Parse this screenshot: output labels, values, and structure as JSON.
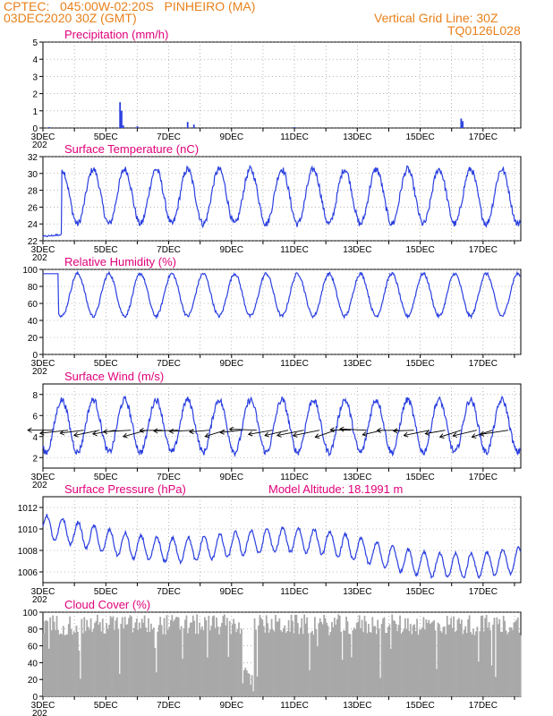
{
  "header": {
    "line1_left": "CPTEC:   045:00W-02:20S   PINHEIRO (MA)",
    "line2_left": "03DEC2020 30Z (GMT)",
    "line1_right": "Vertical Grid Line: 30Z",
    "line2_right": "TQ0126L028"
  },
  "date_labels": [
    "3DEC",
    "5DEC",
    "7DEC",
    "9DEC",
    "11DEC",
    "13DEC",
    "15DEC",
    "17DEC"
  ],
  "year_stub": "202",
  "colors": {
    "line": "#2a3fe0",
    "title": "#e0007a",
    "header": "#e8801a",
    "cloud": "#a8a8a8",
    "grid": "#888888"
  },
  "chart_data": [
    {
      "id": "precip",
      "type": "bar",
      "title": "Precipitation (mm/h)",
      "ylim": [
        0,
        5
      ],
      "yticks": [
        0,
        1,
        2,
        3,
        4,
        5
      ],
      "events": [
        {
          "day": 5.45,
          "value": 1.5
        },
        {
          "day": 5.5,
          "value": 1.0
        },
        {
          "day": 5.55,
          "value": 0.15
        },
        {
          "day": 6.0,
          "value": 0.1
        },
        {
          "day": 7.6,
          "value": 0.35
        },
        {
          "day": 7.8,
          "value": 0.2
        },
        {
          "day": 16.3,
          "value": 0.55
        },
        {
          "day": 16.35,
          "value": 0.4
        },
        {
          "day": 3.2,
          "value": 0.05
        },
        {
          "day": 11.0,
          "value": 0.05
        }
      ]
    },
    {
      "id": "temp",
      "type": "line",
      "title": "Surface Temperature (nC)",
      "ylim": [
        22,
        32
      ],
      "yticks": [
        22,
        24,
        26,
        28,
        30,
        32
      ],
      "series": [
        {
          "name": "",
          "model": "diurnal",
          "min": 24.0,
          "max": 30.5,
          "start_value": 22.5
        }
      ]
    },
    {
      "id": "rh",
      "type": "line",
      "title": "Relative Humidity (%)",
      "ylim": [
        0,
        100
      ],
      "yticks": [
        0,
        20,
        40,
        60,
        80,
        100
      ],
      "series": [
        {
          "name": "",
          "model": "diurnal-inverse",
          "min": 45,
          "max": 95
        }
      ]
    },
    {
      "id": "wind",
      "type": "line",
      "title": "Surface Wind (m/s)",
      "ylim": [
        1,
        9
      ],
      "yticks": [
        2,
        4,
        6,
        8
      ],
      "series": [
        {
          "name": "",
          "model": "diurnal",
          "min": 2.5,
          "max": 7.5
        }
      ],
      "vectors": "easterly"
    },
    {
      "id": "pres",
      "type": "line",
      "title": "Surface Pressure (hPa)",
      "annotation": "Model Altitude: 18.1991 m",
      "ylim": [
        1005,
        1013
      ],
      "yticks": [
        1006,
        1008,
        1010,
        1012
      ],
      "series": [
        {
          "name": "",
          "model": "semidiurnal",
          "mean_start": 1009.5,
          "mean_end": 1007.0,
          "amp": 1.6
        }
      ]
    },
    {
      "id": "cloud",
      "type": "bar",
      "title": "Cloud Cover (%)",
      "ylim": [
        0,
        100
      ],
      "yticks": [
        0,
        20,
        40,
        60,
        80,
        100
      ],
      "series": [
        {
          "name": "",
          "model": "mostly-cloudy",
          "typical": 85
        }
      ]
    }
  ]
}
